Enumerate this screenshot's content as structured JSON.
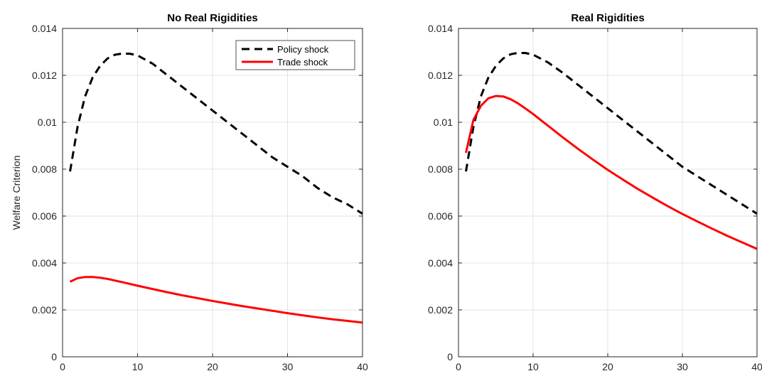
{
  "chart_data": [
    {
      "type": "line",
      "title": "No Real Rigidities",
      "xlabel": "",
      "ylabel": "Welfare Criterion",
      "xlim": [
        0,
        40
      ],
      "ylim": [
        0,
        0.014
      ],
      "xticks": [
        0,
        10,
        20,
        30,
        40
      ],
      "yticks": [
        0,
        0.002,
        0.004,
        0.006,
        0.008,
        0.01,
        0.012,
        0.014
      ],
      "ytick_labels": [
        "0",
        "0.002",
        "0.004",
        "0.006",
        "0.008",
        "0.01",
        "0.012",
        "0.014"
      ],
      "grid": true,
      "legend_position": "top-right",
      "series": [
        {
          "name": "Policy shock",
          "color": "#000000",
          "dash": "dashed",
          "x": [
            1,
            2,
            3,
            4,
            5,
            6,
            7,
            8,
            9,
            10,
            12,
            14,
            16,
            18,
            20,
            22,
            24,
            26,
            28,
            30,
            32,
            34,
            36,
            38,
            40
          ],
          "y": [
            0.0079,
            0.0098,
            0.0111,
            0.0119,
            0.0124,
            0.01272,
            0.01288,
            0.01293,
            0.01292,
            0.01285,
            0.0125,
            0.012,
            0.0115,
            0.011,
            0.0105,
            0.01,
            0.0095,
            0.009,
            0.0085,
            0.0081,
            0.0077,
            0.0072,
            0.0068,
            0.0065,
            0.0061
          ]
        },
        {
          "name": "Trade shock",
          "color": "#ff0000",
          "dash": "solid",
          "x": [
            1,
            2,
            3,
            4,
            5,
            6,
            8,
            10,
            12,
            14,
            16,
            18,
            20,
            22,
            24,
            26,
            28,
            30,
            32,
            34,
            36,
            38,
            40
          ],
          "y": [
            0.0032,
            0.00335,
            0.0034,
            0.0034,
            0.00337,
            0.00332,
            0.00318,
            0.00303,
            0.00289,
            0.00275,
            0.00262,
            0.0025,
            0.00238,
            0.00227,
            0.00216,
            0.00206,
            0.00196,
            0.00186,
            0.00177,
            0.00168,
            0.0016,
            0.00153,
            0.00146
          ]
        }
      ]
    },
    {
      "type": "line",
      "title": "Real Rigidities",
      "xlabel": "",
      "ylabel": "",
      "xlim": [
        0,
        40
      ],
      "ylim": [
        0,
        0.014
      ],
      "xticks": [
        0,
        10,
        20,
        30,
        40
      ],
      "yticks": [
        0,
        0.002,
        0.004,
        0.006,
        0.008,
        0.01,
        0.012,
        0.014
      ],
      "ytick_labels": [
        "0",
        "0.002",
        "0.004",
        "0.006",
        "0.008",
        "0.01",
        "0.012",
        "0.014"
      ],
      "grid": true,
      "legend_position": "none",
      "series": [
        {
          "name": "Policy shock",
          "color": "#000000",
          "dash": "dashed",
          "x": [
            1,
            2,
            3,
            4,
            5,
            6,
            7,
            8,
            9,
            10,
            12,
            14,
            16,
            18,
            20,
            22,
            24,
            26,
            28,
            30,
            32,
            34,
            36,
            38,
            40
          ],
          "y": [
            0.0079,
            0.0098,
            0.0111,
            0.0119,
            0.0124,
            0.01272,
            0.0129,
            0.01296,
            0.01295,
            0.01288,
            0.01255,
            0.0121,
            0.0116,
            0.0111,
            0.0106,
            0.0101,
            0.0096,
            0.0091,
            0.0086,
            0.0081,
            0.0077,
            0.0073,
            0.0069,
            0.0065,
            0.0061
          ]
        },
        {
          "name": "Trade shock",
          "color": "#ff0000",
          "dash": "solid",
          "x": [
            1,
            2,
            3,
            4,
            5,
            6,
            7,
            8,
            9,
            10,
            12,
            14,
            16,
            18,
            20,
            22,
            24,
            26,
            28,
            30,
            32,
            34,
            36,
            38,
            40
          ],
          "y": [
            0.0087,
            0.0101,
            0.0107,
            0.01102,
            0.01112,
            0.0111,
            0.01098,
            0.0108,
            0.01058,
            0.01035,
            0.00985,
            0.00935,
            0.00887,
            0.00841,
            0.00797,
            0.00756,
            0.00716,
            0.00679,
            0.00643,
            0.00609,
            0.00577,
            0.00546,
            0.00516,
            0.00488,
            0.0046
          ]
        }
      ]
    }
  ]
}
